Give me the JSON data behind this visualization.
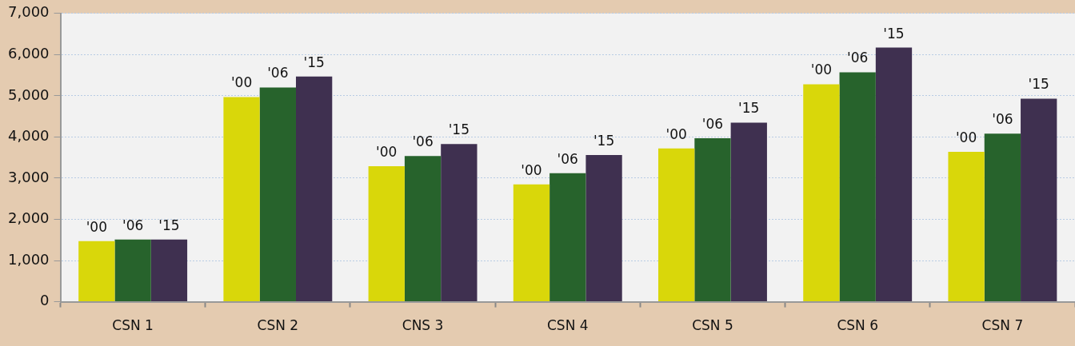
{
  "chart_data": {
    "type": "bar",
    "categories": [
      "CSN 1",
      "CSN 2",
      "CNS 3",
      "CSN 4",
      "CSN 5",
      "CSN 6",
      "CSN 7"
    ],
    "series": [
      {
        "name": "'00",
        "color": "#d9d70a",
        "values": [
          1470,
          4970,
          3290,
          2850,
          3720,
          5280,
          3640
        ]
      },
      {
        "name": "'06",
        "color": "#27632c",
        "values": [
          1510,
          5200,
          3540,
          3120,
          3970,
          5570,
          4080
        ]
      },
      {
        "name": "'15",
        "color": "#3f3050",
        "values": [
          1510,
          5470,
          3830,
          3560,
          4350,
          6170,
          4930
        ]
      }
    ],
    "ylim": [
      0,
      7000
    ],
    "yticks": [
      0,
      {
        "value": 1000,
        "label": "1,000"
      },
      {
        "value": 2000,
        "label": "2,000"
      },
      {
        "value": 3000,
        "label": "3,000"
      },
      {
        "value": 4000,
        "label": "4,000"
      },
      {
        "value": 5000,
        "label": "5,000"
      },
      {
        "value": 6000,
        "label": "6,000"
      },
      {
        "value": 7000,
        "label": "7,000"
      }
    ],
    "grid": "y",
    "legend": false
  }
}
